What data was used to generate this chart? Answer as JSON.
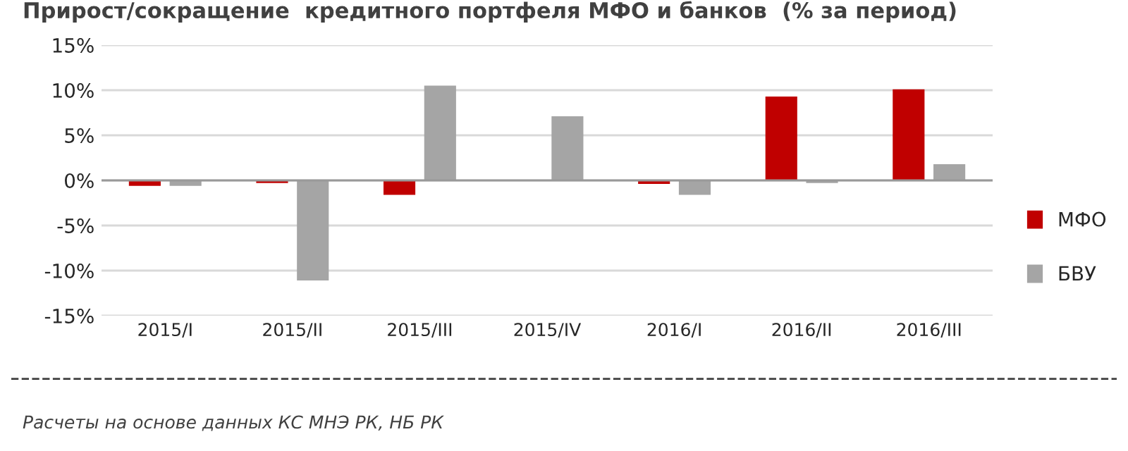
{
  "chart_data": {
    "type": "bar",
    "title": "Прирост/сокращение  кредитного портфеля МФО и банков  (% за период)",
    "categories": [
      "2015/I",
      "2015/II",
      "2015/III",
      "2015/IV",
      "2016/I",
      "2016/II",
      "2016/III"
    ],
    "series": [
      {
        "name": "МФО",
        "color": "#c00000",
        "values": [
          -0.6,
          -0.3,
          -1.6,
          0,
          -0.4,
          9.3,
          10.1
        ]
      },
      {
        "name": "БВУ",
        "color": "#a5a5a5",
        "values": [
          -0.6,
          -11.1,
          10.5,
          7.1,
          -1.6,
          -0.3,
          1.8
        ]
      }
    ],
    "ylim": [
      -15,
      15
    ],
    "yticks": [
      {
        "value": -15,
        "label": "-15%"
      },
      {
        "value": -10,
        "label": "-10%"
      },
      {
        "value": -5,
        "label": "-5%"
      },
      {
        "value": 0,
        "label": "0%"
      },
      {
        "value": 5,
        "label": "5%"
      },
      {
        "value": 10,
        "label": "10%"
      },
      {
        "value": 15,
        "label": "15%"
      }
    ],
    "grid": "y",
    "legend": "right",
    "annotations": [
      "Расчеты на основе данных КС МНЭ РК, НБ РК"
    ]
  }
}
